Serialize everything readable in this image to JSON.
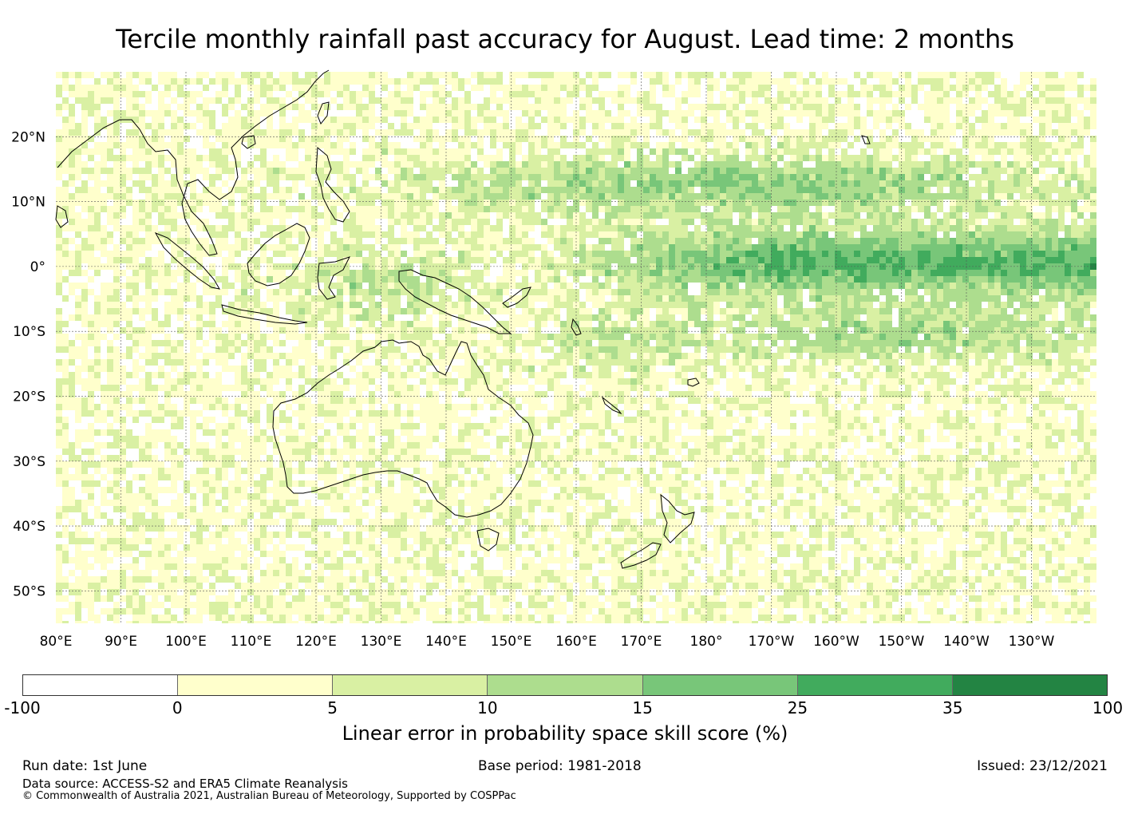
{
  "title": "Tercile monthly rainfall past accuracy for August. Lead time: 2 months",
  "map": {
    "lon_labels": [
      "80°E",
      "90°E",
      "100°E",
      "110°E",
      "120°E",
      "130°E",
      "140°E",
      "150°E",
      "160°E",
      "170°E",
      "180°",
      "170°W",
      "160°W",
      "150°W",
      "140°W",
      "130°W"
    ],
    "lat_labels": [
      "20°N",
      "10°N",
      "0°",
      "10°S",
      "20°S",
      "30°S",
      "40°S",
      "50°S"
    ],
    "extent": {
      "lon_min": 80,
      "lon_max": 240,
      "lat_min": -55,
      "lat_max": 30
    }
  },
  "colorbar": {
    "colors": [
      "#ffffff",
      "#ffffcc",
      "#d9f0a3",
      "#addd8e",
      "#78c679",
      "#41ab5d",
      "#238443"
    ],
    "ticks": [
      "-100",
      "0",
      "5",
      "10",
      "15",
      "25",
      "35",
      "100"
    ],
    "label": "Linear error in probability space skill score (%)"
  },
  "footer": {
    "run_date": "Run date: 1st June",
    "base_period": "Base period: 1981-2018",
    "issued": "Issued: 23/12/2021",
    "data_source": "Data source: ACCESS-S2 and ERA5 Climate Reanalysis",
    "copyright": "© Commonwealth of Australia 2021, Australian Bureau of Meteorology, Supported by COSPPac"
  }
}
